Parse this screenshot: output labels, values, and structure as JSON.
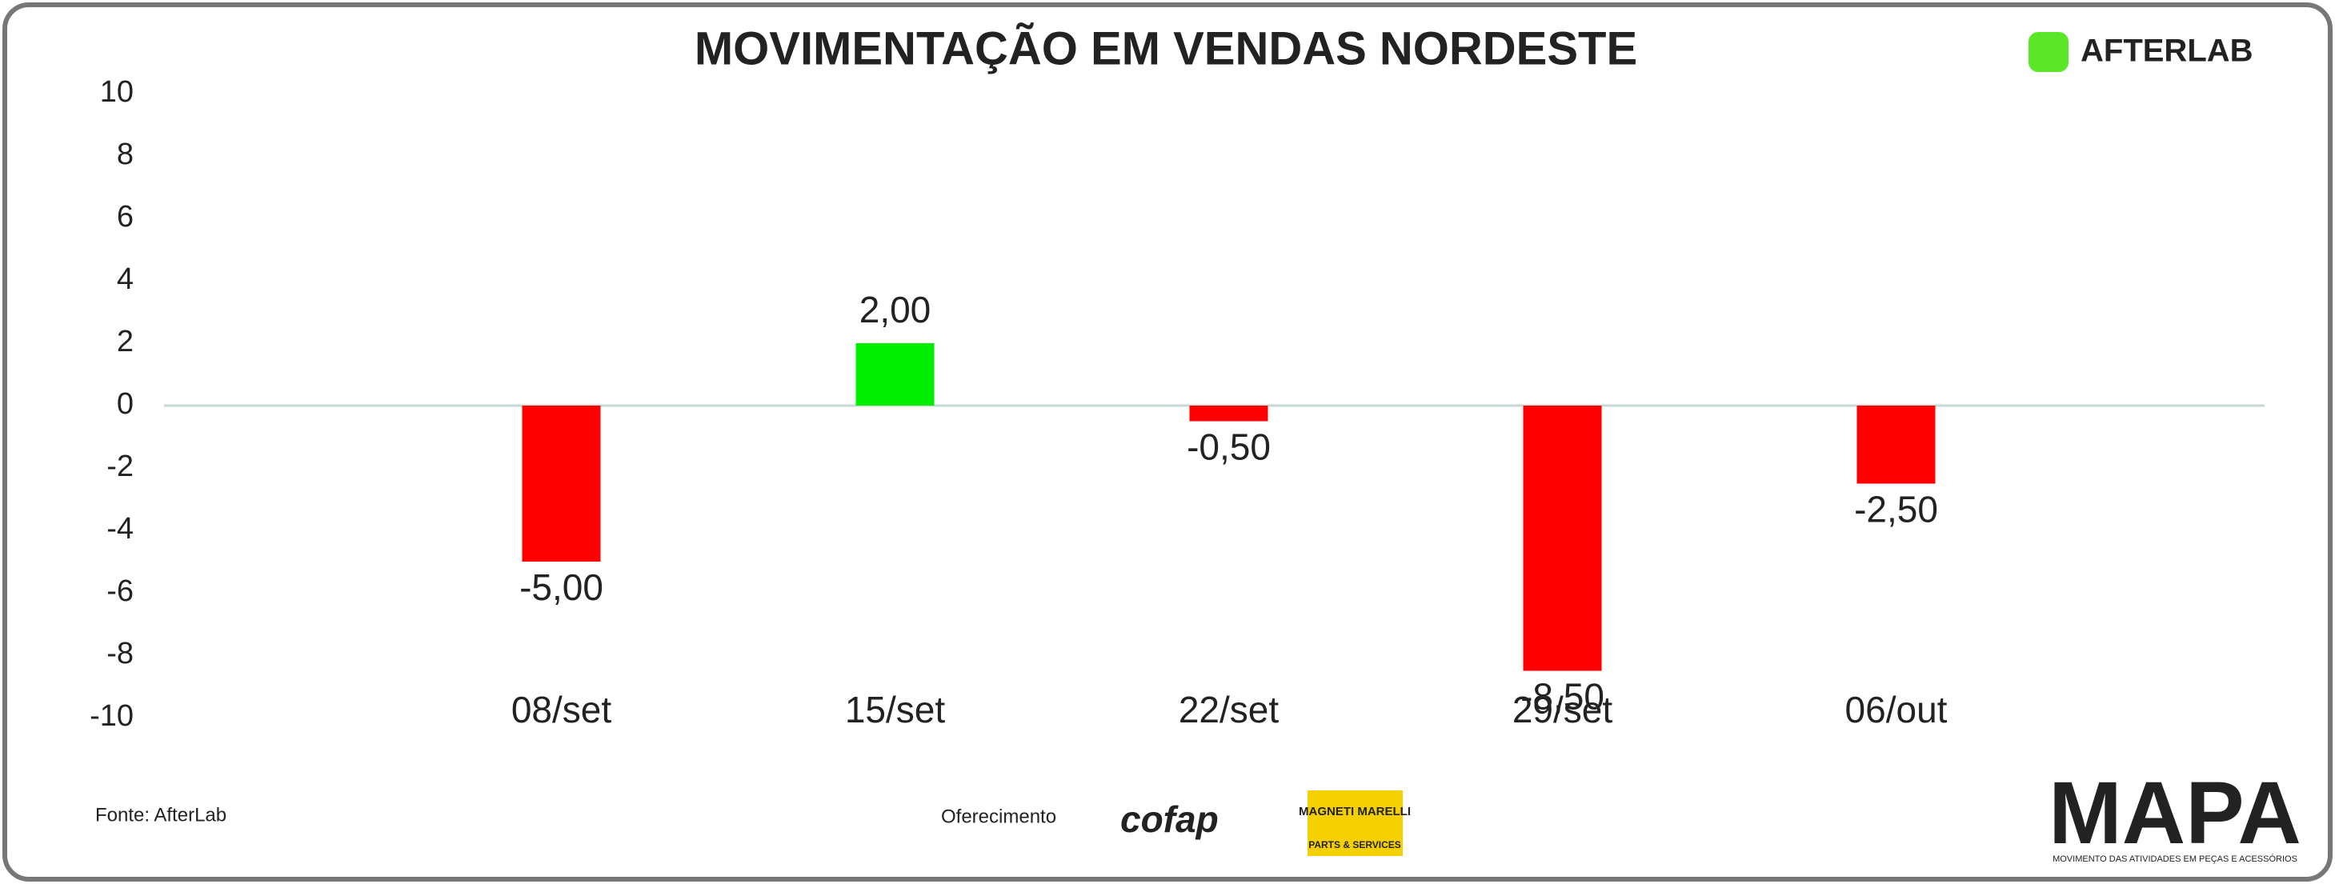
{
  "chart_data": {
    "type": "bar",
    "title": "MOVIMENTAÇÃO EM VENDAS NORDESTE",
    "categories": [
      "08/set",
      "15/set",
      "22/set",
      "29/set",
      "06/out"
    ],
    "values": [
      -5,
      2,
      -0.5,
      -8.5,
      -2.5
    ],
    "value_labels": [
      "-5,00",
      "2,00",
      "-0,50",
      "-8,50",
      "-2,50"
    ],
    "colors": [
      "#ff0000",
      "#00ee00",
      "#ff0000",
      "#ff0000",
      "#ff0000"
    ],
    "ylim": [
      -10,
      10
    ],
    "yticks": [
      -10,
      -8,
      -6,
      -4,
      -2,
      0,
      2,
      4,
      6,
      8,
      10
    ]
  },
  "branding": {
    "source": "Fonte: AfterLab",
    "sponsor_label": "Oferecimento",
    "logo": "AFTERLAB",
    "sponsors": [
      "cofap",
      "MAGNETI MARELLI",
      "PARTS & SERVICES"
    ],
    "mapa": "MAPA",
    "mapa_subtitle": "MOVIMENTO DAS ATIVIDADES EM PEÇAS E ACESSÓRIOS"
  }
}
